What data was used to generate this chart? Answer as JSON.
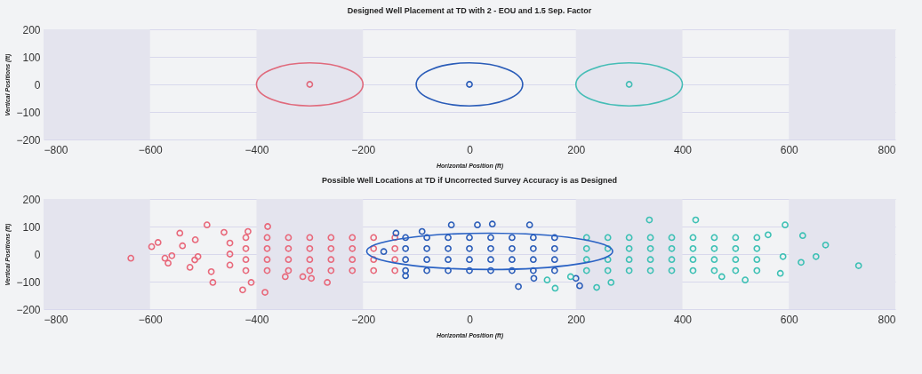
{
  "chart_data": [
    {
      "type": "scatter",
      "title": "Designed Well Placement at TD with 2 - EOU and 1.5 Sep. Factor",
      "xlabel": "Horizontal Position (ft)",
      "ylabel": "Vertical Positions (ft)",
      "xlim": [
        -800,
        800
      ],
      "xticks": [
        -800,
        -600,
        -400,
        -200,
        0,
        200,
        400,
        600,
        800
      ],
      "ylim": [
        -200,
        200
      ],
      "yticks": [
        -200,
        -100,
        0,
        100,
        200
      ],
      "grid": "y",
      "bands": [
        {
          "axis": "x",
          "from": -800,
          "to": -600,
          "color": "#e4e4ee"
        },
        {
          "axis": "x",
          "from": -400,
          "to": -200,
          "color": "#e4e4ee"
        },
        {
          "axis": "x",
          "from": 200,
          "to": 400,
          "color": "#e4e4ee"
        },
        {
          "axis": "x",
          "from": 600,
          "to": 800,
          "color": "#e4e4ee"
        }
      ],
      "series": [
        {
          "type": "scatter",
          "marker": "circle",
          "color": "#e06a7c",
          "x": [
            -300
          ],
          "values": [
            0
          ]
        },
        {
          "type": "scatter",
          "marker": "circle",
          "color": "#2a5cb8",
          "x": [
            0
          ],
          "values": [
            0
          ]
        },
        {
          "type": "scatter",
          "marker": "circle",
          "color": "#45bdb6",
          "x": [
            300
          ],
          "values": [
            0
          ]
        }
      ]
    },
    {
      "type": "scatter",
      "title": "Possible Well Locations at TD if Uncorrected Survey Accuracy is as Designed",
      "xlabel": "Horizontal Position (ft)",
      "ylabel": "Vertical Positions (ft)",
      "xlim": [
        -800,
        800
      ],
      "xticks": [
        -800,
        -600,
        -400,
        -200,
        0,
        200,
        400,
        600,
        800
      ],
      "ylim": [
        -200,
        200
      ],
      "yticks": [
        -200,
        -100,
        0,
        100,
        200
      ],
      "grid": "y",
      "bands": [
        {
          "axis": "x",
          "from": -800,
          "to": -600,
          "color": "#e4e4ee"
        },
        {
          "axis": "x",
          "from": -400,
          "to": -200,
          "color": "#e4e4ee"
        },
        {
          "axis": "x",
          "from": 200,
          "to": 400,
          "color": "#e4e4ee"
        },
        {
          "axis": "x",
          "from": 600,
          "to": 800,
          "color": "#e4e4ee"
        }
      ],
      "series": [
        {
          "type": "scatter",
          "marker": "circle",
          "color": "#e8687a",
          "x": [
            -636,
            -597,
            -493,
            -544,
            -585,
            -566,
            -572,
            -525,
            -485,
            -482,
            -426,
            -384,
            -410,
            -379,
            -461,
            -416,
            -515,
            -539,
            -510,
            -559,
            -516,
            -267,
            -297,
            -346,
            -313,
            -450,
            -450,
            -450,
            -420,
            -420,
            -420,
            -420,
            -380,
            -380,
            -380,
            -380,
            -340,
            -340,
            -340,
            -340,
            -300,
            -300,
            -300,
            -300,
            -260,
            -260,
            -260,
            -260,
            -220,
            -220,
            -220,
            -220,
            -180,
            -180,
            -180,
            -180,
            -140,
            -140,
            -140,
            -140
          ],
          "values": [
            -15,
            27,
            106,
            76,
            42,
            -33,
            -15,
            -48,
            -64,
            -103,
            -130,
            -139,
            -103,
            100,
            79,
            82,
            52,
            30,
            -9,
            -6,
            -21,
            -103,
            -88,
            -82,
            -82,
            -40,
            0,
            40,
            -60,
            -20,
            20,
            60,
            -60,
            -20,
            20,
            60,
            -60,
            -20,
            20,
            60,
            -60,
            -20,
            20,
            60,
            -60,
            -20,
            20,
            60,
            -60,
            -20,
            20,
            60,
            -60,
            -20,
            20,
            60,
            -60,
            -20,
            20,
            60
          ]
        },
        {
          "type": "scatter",
          "marker": "circle",
          "color": "#2a5cb8",
          "x": [
            92,
            207,
            200,
            121,
            -120,
            15,
            43,
            -34,
            113,
            -138,
            -161,
            -89,
            -120,
            -120,
            -120,
            -120,
            -80,
            -80,
            -80,
            -80,
            -40,
            -40,
            -40,
            -40,
            0,
            0,
            0,
            0,
            40,
            40,
            40,
            40,
            80,
            80,
            80,
            80,
            120,
            120,
            120,
            120,
            160,
            160,
            160,
            160
          ],
          "values": [
            -118,
            -115,
            -88,
            -88,
            -79,
            106,
            109,
            106,
            106,
            76,
            9,
            82,
            -60,
            -20,
            20,
            60,
            -60,
            -20,
            20,
            60,
            -60,
            -20,
            20,
            60,
            -60,
            -20,
            20,
            60,
            -60,
            -20,
            20,
            60,
            -60,
            -20,
            20,
            60,
            -60,
            -20,
            20,
            60,
            -60,
            -20,
            20,
            60
          ]
        },
        {
          "type": "scatter",
          "marker": "circle",
          "color": "#3cc0b4",
          "x": [
            731,
            669,
            651,
            623,
            593,
            626,
            584,
            518,
            425,
            338,
            239,
            161,
            474,
            561,
            589,
            266,
            190,
            146,
            220,
            220,
            220,
            220,
            260,
            260,
            260,
            260,
            300,
            300,
            300,
            300,
            340,
            340,
            340,
            340,
            380,
            380,
            380,
            380,
            420,
            420,
            420,
            420,
            460,
            460,
            460,
            460,
            500,
            500,
            500,
            500,
            540,
            540,
            540,
            540
          ],
          "values": [
            -42,
            33,
            -9,
            -30,
            106,
            67,
            -70,
            -94,
            124,
            124,
            -121,
            -124,
            -82,
            70,
            -9,
            -103,
            -82,
            -94,
            -60,
            -20,
            20,
            60,
            -60,
            -20,
            20,
            60,
            -60,
            -20,
            20,
            60,
            -60,
            -20,
            20,
            60,
            -60,
            -20,
            20,
            60,
            -60,
            -20,
            20,
            60,
            -60,
            -20,
            20,
            60,
            -60,
            -20,
            20,
            60,
            -60,
            -20,
            20,
            60
          ]
        }
      ]
    }
  ]
}
